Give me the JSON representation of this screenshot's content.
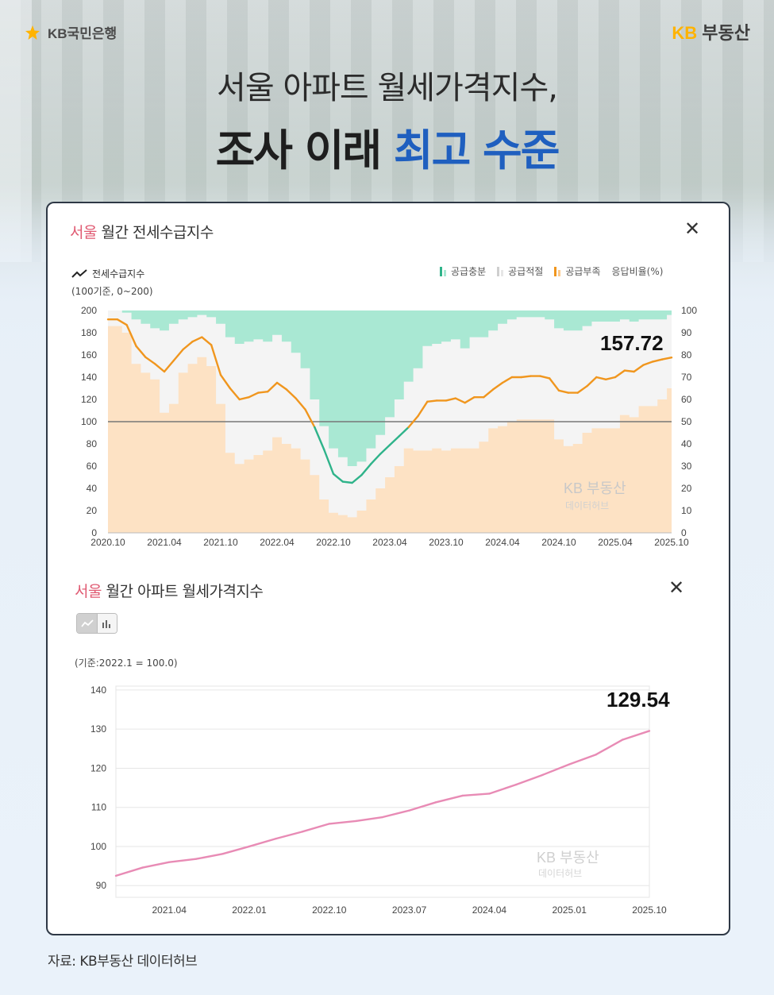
{
  "header": {
    "bank_logo": "KB국민은행",
    "brand_left": "KB",
    "brand_right": "부동산",
    "headline_line1": "서울 아파트 월세가격지수,",
    "headline_line2_plain": "조사 이래 ",
    "headline_line2_highlight": "최고 수준",
    "colors": {
      "highlight": "#1f5fbf",
      "brand_yellow": "#ffb300",
      "city_pink": "#e05a72"
    }
  },
  "chart1": {
    "city": "서울",
    "title": "월간 전세수급지수",
    "close_icon": "close-icon",
    "legend_line": "전세수급지수",
    "legend_sub": "(100기준, 0~200)",
    "legend_items": [
      "공급충분",
      "공급적절",
      "공급부족",
      "응답비율(%)"
    ],
    "callout": "157.72",
    "watermark_1": "KB 부동산",
    "watermark_2": "데이터허브"
  },
  "chart2": {
    "city": "서울",
    "title": "월간 아파트 월세가격지수",
    "close_icon": "close-icon",
    "base_note": "(기준:2022.1 = 100.0)",
    "callout": "129.54",
    "watermark_1": "KB 부동산",
    "watermark_2": "데이터허브"
  },
  "footer": {
    "source": "자료: KB부동산 데이터허브"
  },
  "chart_data": [
    {
      "type": "line",
      "title": "서울 월간 전세수급지수",
      "ylim": [
        0,
        200
      ],
      "y2lim": [
        0,
        100
      ],
      "yticks": [
        0,
        20,
        40,
        60,
        80,
        100,
        120,
        140,
        160,
        180,
        200
      ],
      "y2ticks": [
        0,
        10,
        20,
        30,
        40,
        50,
        60,
        70,
        80,
        90,
        100
      ],
      "xticks": [
        "2020.10",
        "2021.04",
        "2021.10",
        "2022.04",
        "2022.10",
        "2023.04",
        "2023.10",
        "2024.04",
        "2024.10",
        "2025.04",
        "2025.10"
      ],
      "reference_line": 100,
      "colors": {
        "line_above": "#f0961e",
        "line_below": "#2fb38a",
        "shortage": "#fde2c4",
        "adequate": "#f4f4f4",
        "sufficient": "#a9e8d3",
        "reference": "#777777"
      },
      "series": [
        {
          "name": "전세수급지수",
          "months": [
            "2020.10",
            "2020.11",
            "2020.12",
            "2021.01",
            "2021.02",
            "2021.03",
            "2021.04",
            "2021.05",
            "2021.06",
            "2021.07",
            "2021.08",
            "2021.09",
            "2021.10",
            "2021.11",
            "2021.12",
            "2022.01",
            "2022.02",
            "2022.03",
            "2022.04",
            "2022.05",
            "2022.06",
            "2022.07",
            "2022.08",
            "2022.09",
            "2022.10",
            "2022.11",
            "2022.12",
            "2023.01",
            "2023.02",
            "2023.03",
            "2023.04",
            "2023.05",
            "2023.06",
            "2023.07",
            "2023.08",
            "2023.09",
            "2023.10",
            "2023.11",
            "2023.12",
            "2024.01",
            "2024.02",
            "2024.03",
            "2024.04",
            "2024.05",
            "2024.06",
            "2024.07",
            "2024.08",
            "2024.09",
            "2024.10",
            "2024.11",
            "2024.12",
            "2025.01",
            "2025.02",
            "2025.03",
            "2025.04",
            "2025.05",
            "2025.06",
            "2025.07",
            "2025.08",
            "2025.09",
            "2025.10"
          ],
          "values": [
            192,
            192,
            187,
            168,
            158,
            152,
            145,
            155,
            165,
            172,
            176,
            169,
            142,
            130,
            120,
            122,
            126,
            127,
            135,
            129,
            121,
            111,
            95,
            75,
            53,
            46,
            45,
            52,
            62,
            71,
            79,
            87,
            95,
            105,
            118,
            119,
            119,
            121,
            117,
            122,
            122,
            129,
            135,
            140,
            140,
            141,
            141,
            139,
            128,
            126,
            126,
            132,
            140,
            138,
            140,
            146,
            145,
            151,
            154,
            156,
            157.72
          ]
        },
        {
          "name": "공급부족",
          "values": [
            93,
            93,
            90,
            76,
            72,
            69,
            54,
            58,
            72,
            76,
            79,
            75,
            58,
            36,
            31,
            33,
            35,
            37,
            43,
            40,
            38,
            33,
            26,
            15,
            9,
            8,
            7,
            10,
            15,
            20,
            25,
            30,
            38,
            37,
            37,
            38,
            37,
            38,
            38,
            38,
            41,
            47,
            48,
            50,
            51,
            51,
            51,
            51,
            42,
            39,
            40,
            45,
            47,
            47,
            47,
            53,
            52,
            57,
            57,
            60,
            65
          ]
        },
        {
          "name": "공급충분",
          "values": [
            0,
            0,
            1,
            4,
            6,
            8,
            9,
            6,
            4,
            3,
            2,
            3,
            6,
            12,
            15,
            14,
            13,
            14,
            11,
            14,
            19,
            26,
            40,
            52,
            62,
            66,
            70,
            68,
            62,
            56,
            48,
            40,
            32,
            26,
            16,
            15,
            14,
            13,
            17,
            12,
            12,
            9,
            6,
            4,
            3,
            3,
            3,
            4,
            8,
            9,
            9,
            7,
            5,
            5,
            5,
            4,
            5,
            4,
            4,
            4,
            2
          ]
        }
      ]
    },
    {
      "type": "line",
      "title": "서울 월간 아파트 월세가격지수",
      "ylim": [
        87,
        141
      ],
      "yticks": [
        90,
        100,
        110,
        120,
        130,
        140
      ],
      "xticks": [
        "2021.04",
        "2022.01",
        "2022.10",
        "2023.07",
        "2024.04",
        "2025.01",
        "2025.10"
      ],
      "colors": {
        "line": "#e88bb5"
      },
      "series": [
        {
          "name": "월세가격지수",
          "months": [
            "2020.10",
            "2021.01",
            "2021.04",
            "2021.07",
            "2021.10",
            "2022.01",
            "2022.04",
            "2022.07",
            "2022.10",
            "2023.01",
            "2023.04",
            "2023.07",
            "2023.10",
            "2024.01",
            "2024.04",
            "2024.07",
            "2024.10",
            "2025.01",
            "2025.04",
            "2025.07",
            "2025.10"
          ],
          "values": [
            92.5,
            94.6,
            96.0,
            96.8,
            98.1,
            100.0,
            102.0,
            103.8,
            105.8,
            106.5,
            107.5,
            109.2,
            111.3,
            113.0,
            113.5,
            115.8,
            118.3,
            121.0,
            123.5,
            127.3,
            129.54
          ]
        }
      ]
    }
  ]
}
